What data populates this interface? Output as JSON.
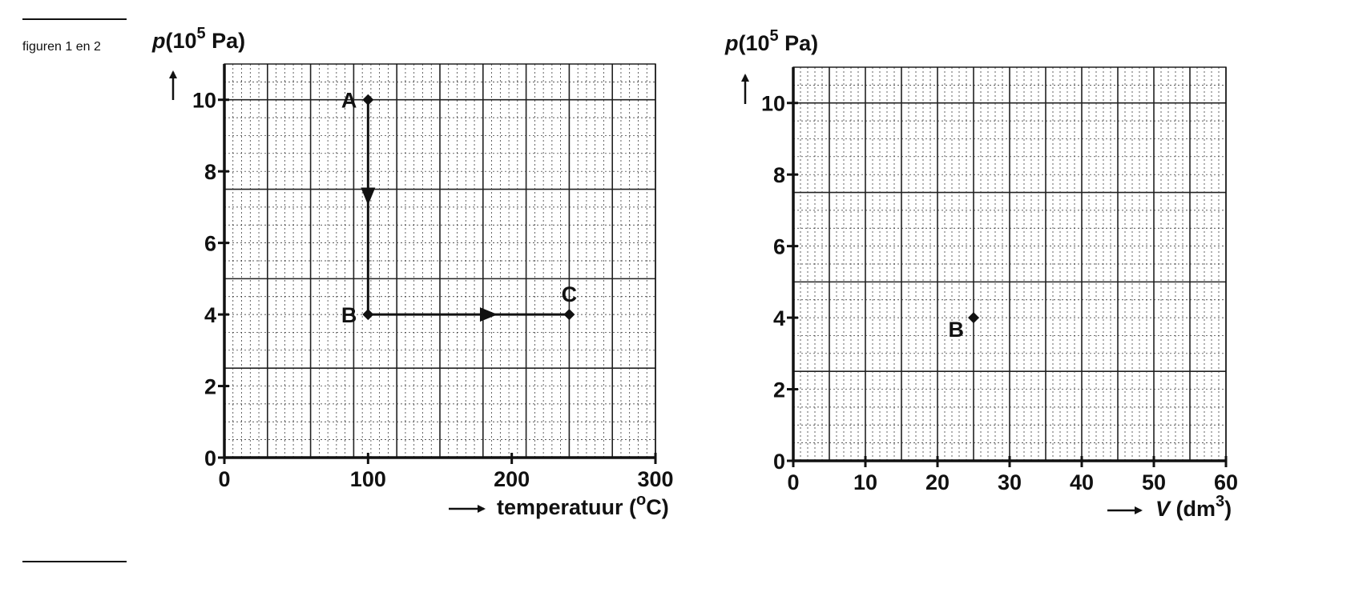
{
  "caption": "figuren 1 en 2",
  "chart_data": [
    {
      "type": "line",
      "ylabel": {
        "symbol": "p",
        "pre": "(10",
        "sup": "5",
        "post": " Pa)"
      },
      "xlabel": {
        "text": "temperatuur (",
        "sup": "o",
        "post": "C)"
      },
      "xlim": [
        0,
        300
      ],
      "ylim": [
        0,
        11
      ],
      "xticks": [
        0,
        100,
        200,
        300
      ],
      "yticks": [
        0,
        2,
        4,
        6,
        8,
        10
      ],
      "grid": true,
      "points": [
        {
          "label": "A",
          "x": 100,
          "y": 10
        },
        {
          "label": "B",
          "x": 100,
          "y": 4
        },
        {
          "label": "C",
          "x": 240,
          "y": 4
        }
      ],
      "segments": [
        {
          "from": "A",
          "to": "B"
        },
        {
          "from": "B",
          "to": "C"
        }
      ]
    },
    {
      "type": "scatter",
      "ylabel": {
        "symbol": "p",
        "pre": "(10",
        "sup": "5",
        "post": " Pa)"
      },
      "xlabel": {
        "symbol": "V",
        "pre": " (dm",
        "sup": "3",
        "post": ")"
      },
      "xlim": [
        0,
        60
      ],
      "ylim": [
        0,
        11
      ],
      "xticks": [
        0,
        10,
        20,
        30,
        40,
        50,
        60
      ],
      "yticks": [
        0,
        2,
        4,
        6,
        8,
        10
      ],
      "grid": true,
      "points": [
        {
          "label": "B",
          "x": 25,
          "y": 4
        }
      ]
    }
  ]
}
